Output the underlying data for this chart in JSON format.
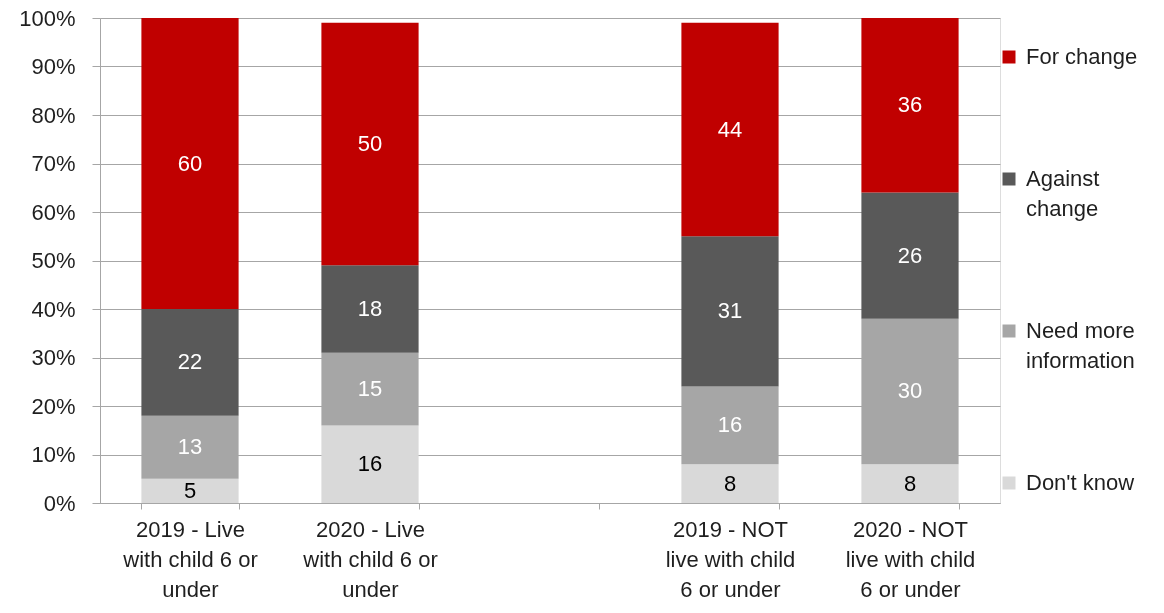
{
  "chart_data": {
    "type": "bar",
    "stacked": true,
    "categories": [
      "2019 - Live with child 6 or under",
      "2020 - Live with child 6 or under",
      null,
      "2019 - NOT live with child 6 or under",
      "2020 - NOT live with child 6 or under"
    ],
    "series": [
      {
        "name": "Don't know",
        "color": "#d9d9d9",
        "values": [
          5,
          16,
          null,
          8,
          8
        ]
      },
      {
        "name": "Need more information",
        "color": "#a6a6a6",
        "values": [
          13,
          15,
          null,
          16,
          30
        ]
      },
      {
        "name": "Against change",
        "color": "#595959",
        "values": [
          22,
          18,
          null,
          31,
          26
        ]
      },
      {
        "name": "For change",
        "color": "#c00000",
        "values": [
          60,
          50,
          null,
          44,
          36
        ]
      }
    ],
    "ylim": [
      0,
      100
    ],
    "yticks": [
      {
        "value": 0,
        "label": "0%"
      },
      {
        "value": 10,
        "label": "10%"
      },
      {
        "value": 20,
        "label": "20%"
      },
      {
        "value": 30,
        "label": "30%"
      },
      {
        "value": 40,
        "label": "40%"
      },
      {
        "value": 50,
        "label": "50%"
      },
      {
        "value": 60,
        "label": "60%"
      },
      {
        "value": 70,
        "label": "70%"
      },
      {
        "value": 80,
        "label": "80%"
      },
      {
        "value": 90,
        "label": "90%"
      },
      {
        "value": 100,
        "label": "100%"
      }
    ],
    "grid": "y",
    "legend": "right",
    "data_labels": true
  }
}
